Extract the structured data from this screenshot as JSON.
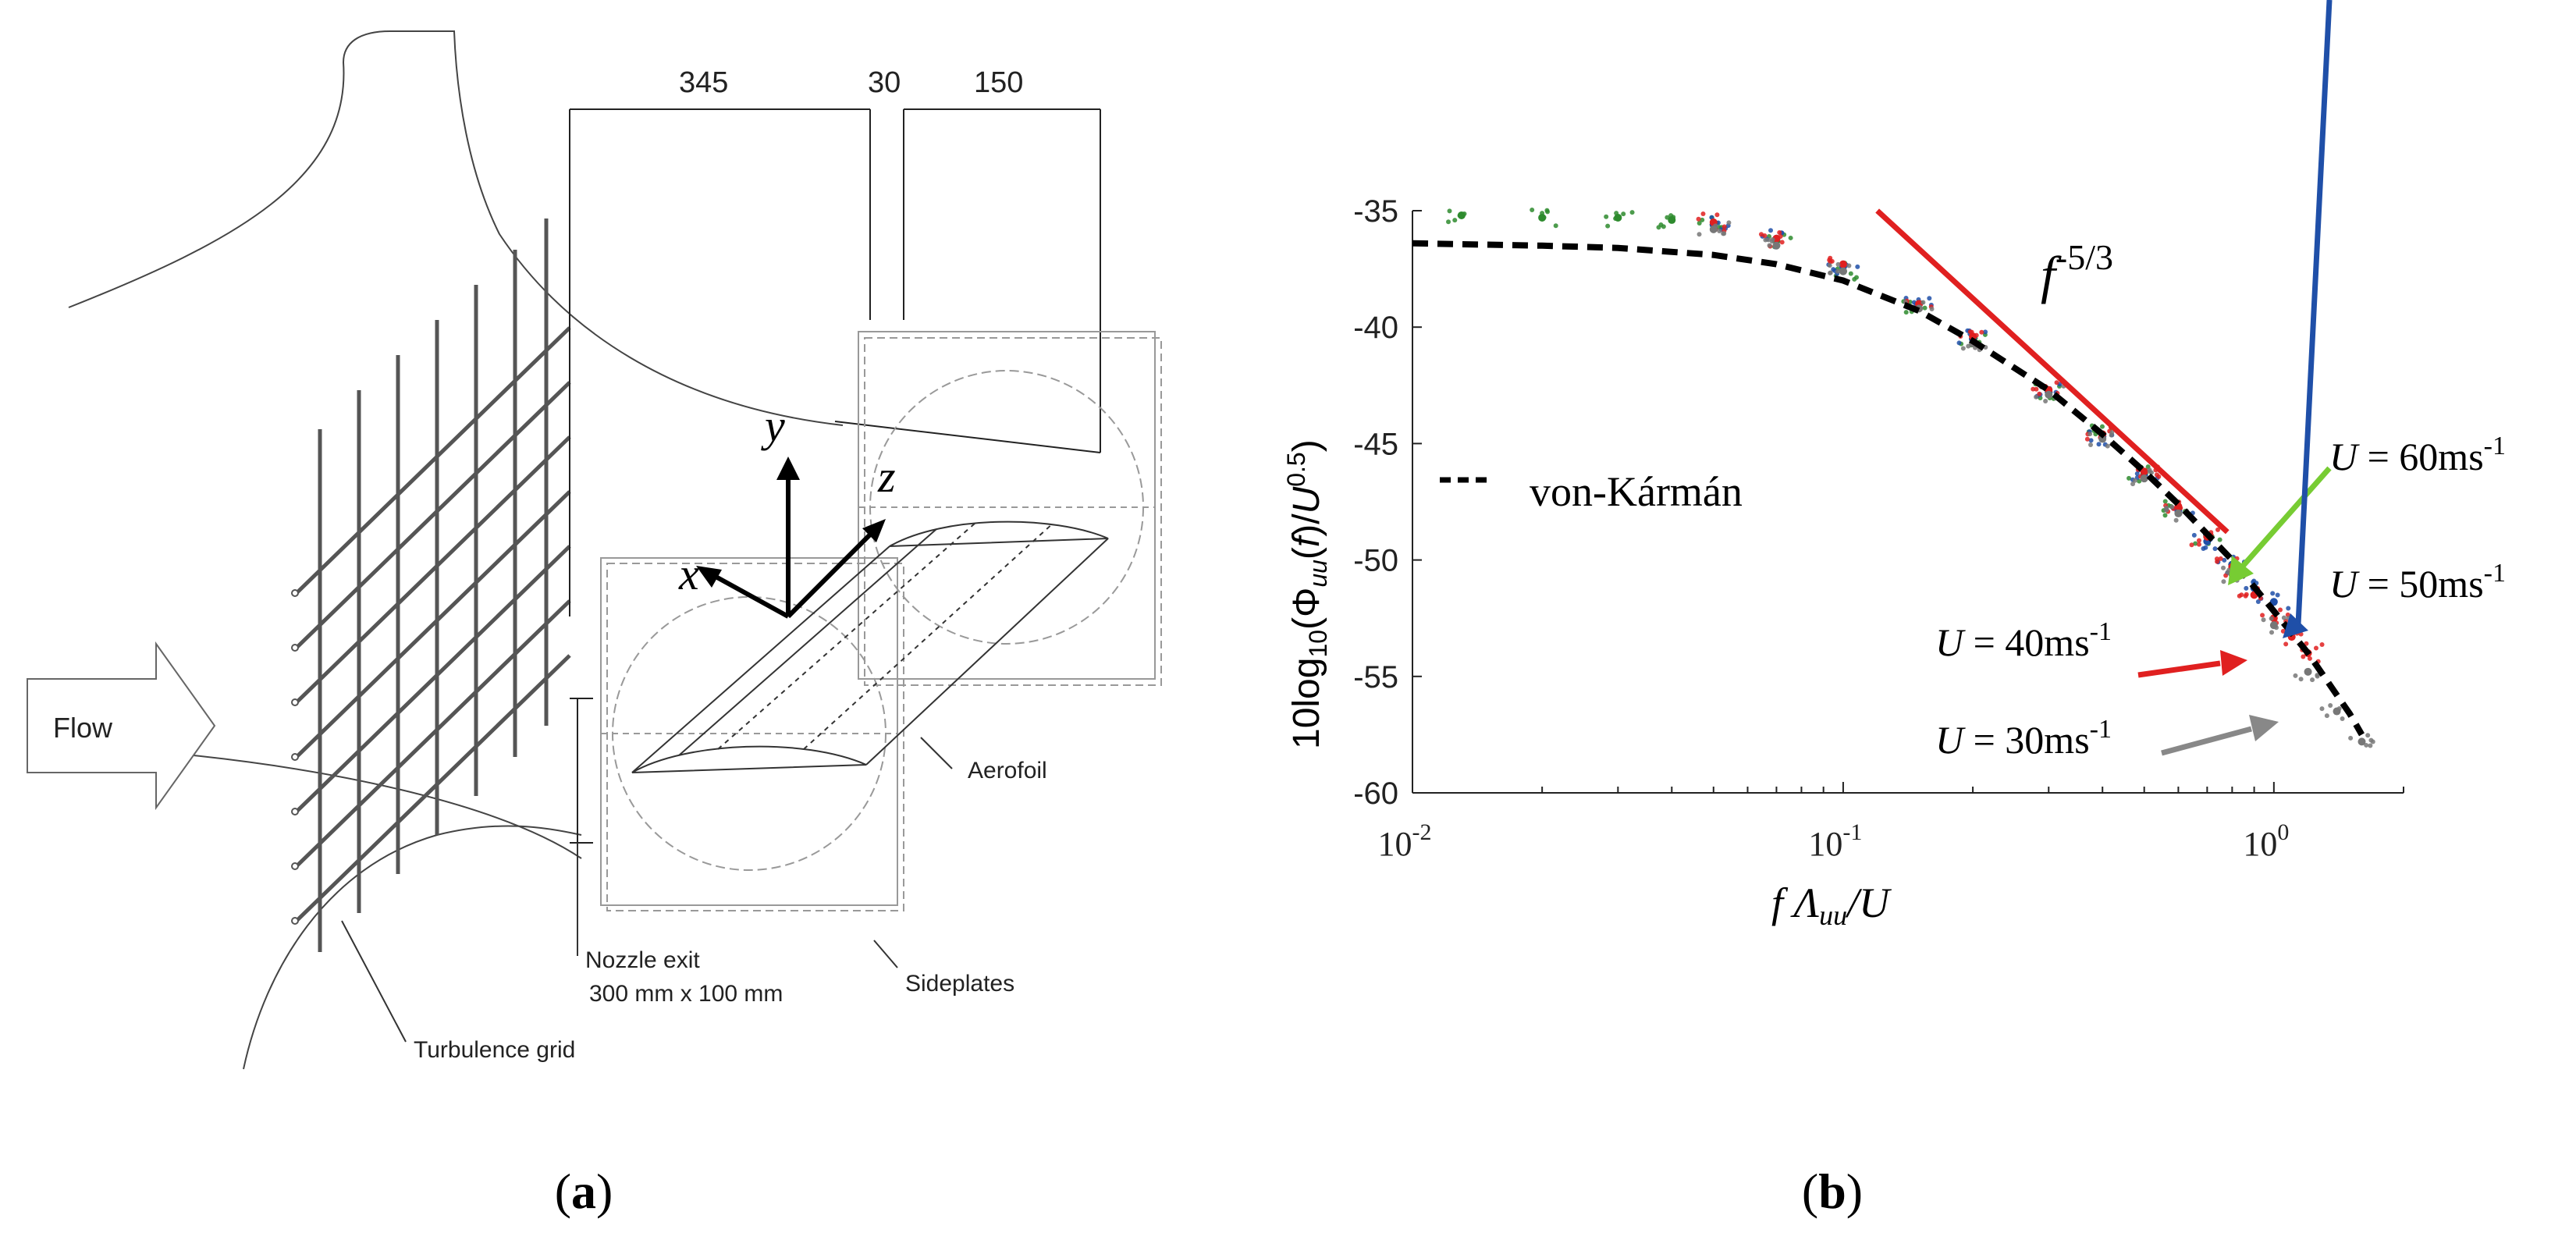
{
  "panel_a": {
    "caption_open": "(",
    "caption_letter": "a",
    "caption_close": ")",
    "dimensions": {
      "d1": "345",
      "d2": "30",
      "d3": "150"
    },
    "labels": {
      "flow": "Flow",
      "aerofoil": "Aerofoil",
      "nozzle_line1": "Nozzle exit",
      "nozzle_line2": "300 mm x 100 mm",
      "sideplates": "Sideplates",
      "turbulence_grid": "Turbulence grid"
    },
    "axes": {
      "x": "x",
      "y": "y",
      "z": "z"
    }
  },
  "panel_b": {
    "caption_open": "(",
    "caption_letter": "b",
    "caption_close": ")",
    "slope_base": "f",
    "slope_exp": "-5/3",
    "legend_label": "von-Kármán",
    "speed_labels": [
      {
        "sym": "U",
        "text": " = 60ms",
        "exp": "-1",
        "color": "#77cc33"
      },
      {
        "sym": "U",
        "text": " = 50ms",
        "exp": "-1",
        "color": "#1f4fa8"
      },
      {
        "sym": "U",
        "text": " = 40ms",
        "exp": "-1",
        "color": "#e02020"
      },
      {
        "sym": "U",
        "text": " = 30ms",
        "exp": "-1",
        "color": "#888888"
      }
    ]
  },
  "chart_data": {
    "type": "scatter",
    "title": "",
    "xlabel": "f Λuu/U",
    "ylabel": "10log10(Φuu(f)/U0.5)",
    "xscale": "log",
    "xlim": [
      0.01,
      2
    ],
    "ylim": [
      -60,
      -35
    ],
    "x_ticks": [
      {
        "value": 0.01,
        "base": "10",
        "exp": "-2"
      },
      {
        "value": 0.1,
        "base": "10",
        "exp": "-1"
      },
      {
        "value": 1,
        "base": "10",
        "exp": "0"
      }
    ],
    "y_ticks": [
      "-35",
      "-40",
      "-45",
      "-50",
      "-55",
      "-60"
    ],
    "series": [
      {
        "name": "von-Kármán",
        "kind": "line",
        "color": "#000000",
        "x": [
          0.01,
          0.02,
          0.03,
          0.05,
          0.07,
          0.1,
          0.15,
          0.2,
          0.3,
          0.4,
          0.5,
          0.6,
          0.8,
          1.0,
          1.2,
          1.5,
          1.6
        ],
        "y": [
          -36.4,
          -36.5,
          -36.6,
          -36.9,
          -37.3,
          -38.0,
          -39.3,
          -40.6,
          -42.7,
          -44.6,
          -46.2,
          -47.6,
          -50.0,
          -52.2,
          -54.0,
          -56.6,
          -57.5
        ]
      },
      {
        "name": "U = 60ms-1",
        "kind": "scatter",
        "color": "#2e8b2e",
        "x": [
          0.013,
          0.02,
          0.03,
          0.04,
          0.05,
          0.07,
          0.1,
          0.15,
          0.2,
          0.3,
          0.4,
          0.5,
          0.6,
          0.7,
          0.8
        ],
        "y": [
          -35.2,
          -35.3,
          -35.3,
          -35.4,
          -35.6,
          -36.3,
          -37.6,
          -39.0,
          -40.5,
          -42.8,
          -44.6,
          -46.3,
          -47.8,
          -49.0,
          -50.2
        ]
      },
      {
        "name": "U = 50ms-1",
        "kind": "scatter",
        "color": "#1f4fa8",
        "x": [
          0.05,
          0.07,
          0.1,
          0.15,
          0.2,
          0.3,
          0.4,
          0.5,
          0.6,
          0.7,
          0.8,
          0.9,
          1.0
        ],
        "y": [
          -35.6,
          -36.2,
          -37.4,
          -39.0,
          -40.5,
          -42.8,
          -44.7,
          -46.4,
          -47.9,
          -49.2,
          -50.2,
          -51.2,
          -51.8
        ]
      },
      {
        "name": "U = 40ms-1",
        "kind": "scatter",
        "color": "#e02020",
        "x": [
          0.05,
          0.07,
          0.1,
          0.15,
          0.2,
          0.3,
          0.4,
          0.5,
          0.6,
          0.7,
          0.8,
          0.9,
          1.0,
          1.1,
          1.2
        ],
        "y": [
          -35.5,
          -36.2,
          -37.3,
          -39.0,
          -40.4,
          -42.7,
          -44.6,
          -46.2,
          -47.7,
          -49.0,
          -50.3,
          -51.5,
          -52.5,
          -53.3,
          -54.0
        ]
      },
      {
        "name": "U = 30ms-1",
        "kind": "scatter",
        "color": "#777777",
        "x": [
          0.05,
          0.07,
          0.1,
          0.15,
          0.2,
          0.3,
          0.4,
          0.5,
          0.6,
          0.8,
          1.0,
          1.2,
          1.4,
          1.6
        ],
        "y": [
          -35.8,
          -36.5,
          -37.6,
          -39.2,
          -40.7,
          -42.9,
          -44.8,
          -46.5,
          -48.0,
          -50.6,
          -52.8,
          -54.8,
          -56.5,
          -57.8
        ]
      }
    ],
    "slope_line": {
      "label": "f-5/3",
      "color": "#e02020",
      "x": [
        0.12,
        0.78
      ],
      "y": [
        -35,
        -48.8
      ]
    }
  }
}
